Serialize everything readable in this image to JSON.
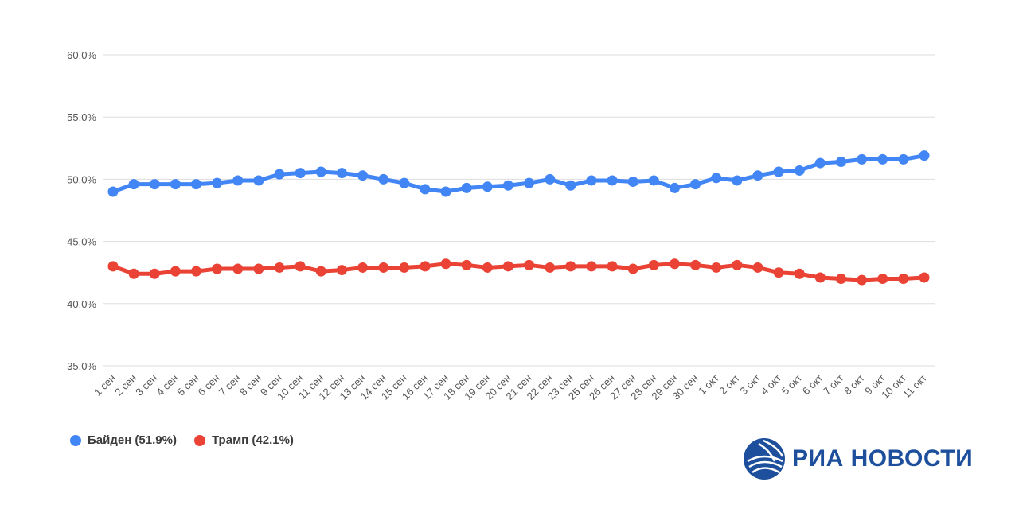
{
  "colors": {
    "biden": "#4285f4",
    "trump": "#ea4335",
    "brand": "#1d4f9c"
  },
  "legend": {
    "biden_label": "Байден (51.9%)",
    "trump_label": "Трамп (42.1%)"
  },
  "logo": {
    "text": "РИА НОВОСТИ",
    "icon": "ria-globe-icon"
  },
  "chart_data": {
    "type": "line",
    "ylim": [
      35,
      60
    ],
    "yticks": [
      "35.0%",
      "40.0%",
      "45.0%",
      "50.0%",
      "55.0%",
      "60.0%"
    ],
    "categories": [
      "1 сен",
      "2 сен",
      "3 сен",
      "4 сен",
      "5 сен",
      "6 сен",
      "7 сен",
      "8 сен",
      "9 сен",
      "10 сен",
      "11 сен",
      "12 сен",
      "13 сен",
      "14 сен",
      "15 сен",
      "16 сен",
      "17 сен",
      "18 сен",
      "19 сен",
      "20 сен",
      "21 сен",
      "22 сен",
      "23 сен",
      "25 сен",
      "26 сен",
      "27 сен",
      "28 сен",
      "29 сен",
      "30 сен",
      "1 окт",
      "2 окт",
      "3 окт",
      "4 окт",
      "5 окт",
      "6 окт",
      "7 окт",
      "8 окт",
      "9 окт",
      "10 окт",
      "11 окт"
    ],
    "series": [
      {
        "name": "Байден (51.9%)",
        "color": "#4285f4",
        "values": [
          49.0,
          49.6,
          49.6,
          49.6,
          49.6,
          49.7,
          49.9,
          49.9,
          50.4,
          50.5,
          50.6,
          50.5,
          50.3,
          50.0,
          49.7,
          49.2,
          49.0,
          49.3,
          49.4,
          49.5,
          49.7,
          50.0,
          49.5,
          49.9,
          49.9,
          49.8,
          49.9,
          49.3,
          49.6,
          50.1,
          49.9,
          50.3,
          50.6,
          50.7,
          51.3,
          51.4,
          51.6,
          51.6,
          51.6,
          51.9
        ]
      },
      {
        "name": "Трамп (42.1%)",
        "color": "#ea4335",
        "values": [
          43.0,
          42.4,
          42.4,
          42.6,
          42.6,
          42.8,
          42.8,
          42.8,
          42.9,
          43.0,
          42.6,
          42.7,
          42.9,
          42.9,
          42.9,
          43.0,
          43.2,
          43.1,
          42.9,
          43.0,
          43.1,
          42.9,
          43.0,
          43.0,
          43.0,
          42.8,
          43.1,
          43.2,
          43.1,
          42.9,
          43.1,
          42.9,
          42.5,
          42.4,
          42.1,
          42.0,
          41.9,
          42.0,
          42.0,
          42.1
        ]
      }
    ],
    "grid": true,
    "legend_position": "bottom-left"
  }
}
